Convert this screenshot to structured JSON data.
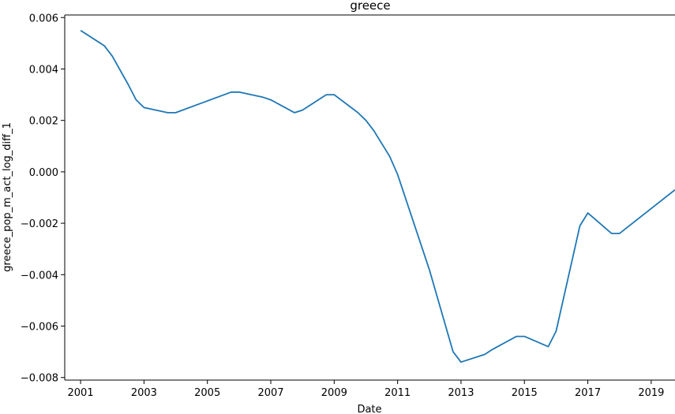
{
  "chart_data": {
    "type": "line",
    "title": "greece",
    "xlabel": "Date",
    "ylabel": "greece_pop_m_act_log_diff_1",
    "xlim": [
      2000.5,
      2019.75
    ],
    "ylim": [
      -0.0081,
      0.0061
    ],
    "x_ticks": [
      2001,
      2003,
      2005,
      2007,
      2009,
      2011,
      2013,
      2015,
      2017,
      2019
    ],
    "x_tick_labels": [
      "2001",
      "2003",
      "2005",
      "2007",
      "2009",
      "2011",
      "2013",
      "2015",
      "2017",
      "2019"
    ],
    "y_ticks": [
      -0.008,
      -0.006,
      -0.004,
      -0.002,
      0.0,
      0.002,
      0.004,
      0.006
    ],
    "y_tick_labels": [
      "−0.008",
      "−0.006",
      "−0.004",
      "−0.002",
      "0.000",
      "0.002",
      "0.004",
      "0.006"
    ],
    "grid": false,
    "color": "#1f77b4",
    "series": [
      {
        "x": [
          2001.0,
          2001.75,
          2002.0,
          2002.5,
          2002.75,
          2003.0,
          2003.75,
          2004.0,
          2005.75,
          2006.0,
          2006.75,
          2007.0,
          2007.75,
          2008.0,
          2008.75,
          2009.0,
          2009.75,
          2010.0,
          2010.25,
          2010.75,
          2011.0,
          2012.0,
          2012.75,
          2013.0,
          2013.75,
          2014.0,
          2014.75,
          2015.0,
          2015.75,
          2016.0,
          2016.75,
          2017.0,
          2017.75,
          2018.0,
          2019.75
        ],
        "y": [
          0.0055,
          0.0049,
          0.0045,
          0.0034,
          0.0028,
          0.0025,
          0.0023,
          0.0023,
          0.0031,
          0.0031,
          0.0029,
          0.0028,
          0.0023,
          0.0024,
          0.003,
          0.003,
          0.0023,
          0.002,
          0.0016,
          0.0006,
          -0.0001,
          -0.0038,
          -0.007,
          -0.0074,
          -0.0071,
          -0.0069,
          -0.0064,
          -0.0064,
          -0.0068,
          -0.0062,
          -0.0021,
          -0.0016,
          -0.0024,
          -0.0024,
          -0.0007
        ]
      }
    ]
  }
}
